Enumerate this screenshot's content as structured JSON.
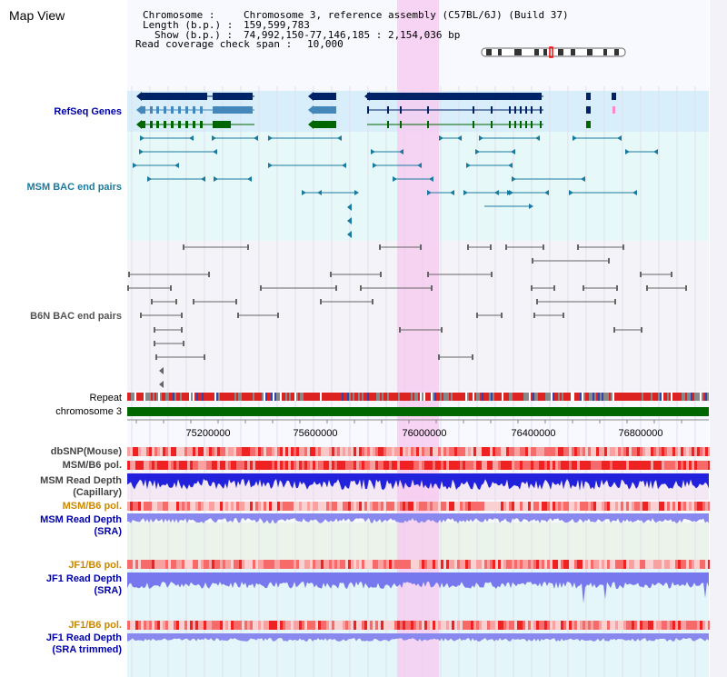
{
  "view_title": "Map View",
  "info": {
    "chromosome_label": "Chromosome    : ",
    "chromosome_value": "Chromosome 3, reference assembly (C57BL/6J) (Build 37)",
    "length_label": "Length (b.p.) : ",
    "length_value": "159,599,783",
    "show_label": "Show (b.p.) : ",
    "show_value": "74,992,150-77,146,185 : 2,154,036 bp",
    "coverage_label": "Read coverage check span : ",
    "coverage_value": "10,000"
  },
  "tracks": {
    "refseq": "RefSeq Genes",
    "msm_bac": "MSM BAC end pairs",
    "b6n_bac": "B6N BAC end pairs",
    "repeat": "Repeat",
    "chromosome": "chromosome 3",
    "dbsnp": "dbSNP(Mouse)",
    "msm_b6_pol_1": "MSM/B6 pol.",
    "msm_read_depth_cap_1": "MSM Read Depth",
    "msm_read_depth_cap_2": "(Capillary)",
    "msm_b6_pol_2": "MSM/B6 pol.",
    "msm_read_depth_sra_1": "MSM Read Depth",
    "msm_read_depth_sra_2": "(SRA)",
    "jf1_b6_pol_1": "JF1/B6 pol.",
    "jf1_read_depth_sra_1": "JF1 Read Depth",
    "jf1_read_depth_sra_2": "(SRA)",
    "jf1_b6_pol_2": "JF1/B6 pol.",
    "jf1_read_depth_trim_1": "JF1 Read Depth",
    "jf1_read_depth_trim_2": "(SRA trimmed)"
  },
  "axis": {
    "ticks": [
      "75200000",
      "75600000",
      "76000000",
      "76400000",
      "76800000"
    ]
  },
  "colors": {
    "label_blue": "#0000aa",
    "label_orange": "#cc8800",
    "highlight": "#f8c8f0",
    "gene_dark": "#002266",
    "gene_teal": "#4488bb",
    "gene_green": "#006600",
    "bac_teal": "#1a7aa0",
    "bac_gray": "#666666"
  }
}
